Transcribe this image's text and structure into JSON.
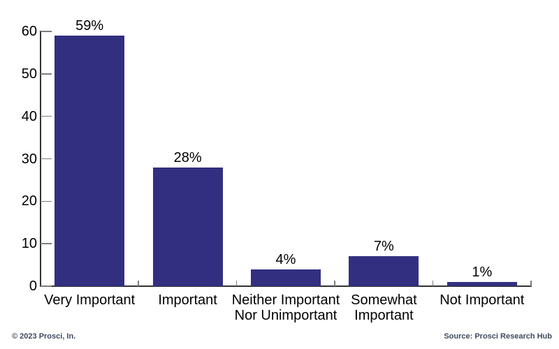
{
  "chart_data": {
    "type": "bar",
    "categories": [
      "Very Important",
      "Important",
      "Neither Important\nNor Unimportant",
      "Somewhat\nImportant",
      "Not Important"
    ],
    "values": [
      59,
      28,
      4,
      7,
      1
    ],
    "value_labels": [
      "59%",
      "28%",
      "4%",
      "7%",
      "1%"
    ],
    "title": "",
    "xlabel": "",
    "ylabel": "",
    "ylim": [
      0,
      60
    ],
    "yticks": [
      0,
      10,
      20,
      30,
      40,
      50,
      60
    ],
    "grid": false,
    "legend": false,
    "bar_color": "#332F80",
    "axis_color": "#333333",
    "tick_color": "#7d7d7d",
    "label_color": "#000000"
  },
  "footer": {
    "copyright": "© 2023 Prosci, In.",
    "source": "Source: Prosci Research Hub",
    "text_color": "#3E4A5F"
  }
}
